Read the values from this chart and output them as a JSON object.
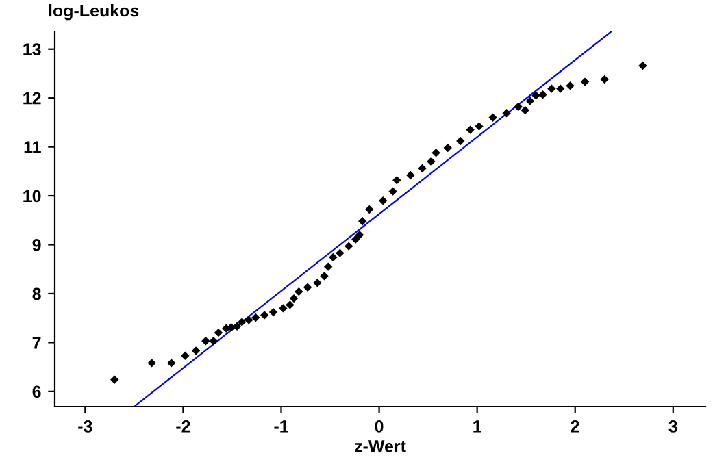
{
  "chart_data": {
    "type": "scatter",
    "xlabel": "z-Wert",
    "ylabel": "log-Leukos",
    "xlim": [
      -3.31,
      3.33
    ],
    "ylim": [
      5.69,
      13.36
    ],
    "xticks": [
      -3,
      -2,
      -1,
      0,
      1,
      2,
      3
    ],
    "yticks": [
      6,
      7,
      8,
      9,
      10,
      11,
      12,
      13
    ],
    "grid": false,
    "legend": false,
    "marker": "diamond",
    "series": [
      {
        "color": "#000000",
        "x": [
          -2.7,
          -2.32,
          -2.12,
          -1.98,
          -1.87,
          -1.77,
          -1.69,
          -1.64,
          -1.56,
          -1.51,
          -1.45,
          -1.4,
          -1.33,
          -1.26,
          -1.17,
          -1.08,
          -0.98,
          -0.91,
          -0.87,
          -0.82,
          -0.73,
          -0.63,
          -0.56,
          -0.52,
          -0.47,
          -0.4,
          -0.31,
          -0.24,
          -0.2,
          -0.17,
          -0.1,
          0.04,
          0.14,
          0.18,
          0.32,
          0.44,
          0.53,
          0.58,
          0.7,
          0.83,
          0.93,
          1.02,
          1.16,
          1.3,
          1.42,
          1.49,
          1.54,
          1.6,
          1.67,
          1.76,
          1.85,
          1.95,
          2.1,
          2.3,
          2.69
        ],
        "values": [
          6.24,
          6.58,
          6.58,
          6.73,
          6.83,
          7.03,
          7.03,
          7.2,
          7.29,
          7.31,
          7.33,
          7.42,
          7.46,
          7.51,
          7.56,
          7.62,
          7.7,
          7.77,
          7.9,
          8.04,
          8.13,
          8.22,
          8.36,
          8.55,
          8.74,
          8.83,
          8.97,
          9.11,
          9.2,
          9.48,
          9.72,
          9.9,
          10.09,
          10.32,
          10.42,
          10.56,
          10.7,
          10.88,
          10.98,
          11.12,
          11.35,
          11.42,
          11.6,
          11.69,
          11.82,
          11.75,
          11.94,
          12.05,
          12.07,
          12.19,
          12.19,
          12.25,
          12.33,
          12.38,
          12.66
        ]
      },
      {
        "type": "line",
        "color": "#0000ff",
        "marker": "none",
        "line_style": "solid",
        "x": [
          -2.5,
          2.37
        ],
        "values": [
          5.69,
          13.36
        ]
      }
    ]
  }
}
